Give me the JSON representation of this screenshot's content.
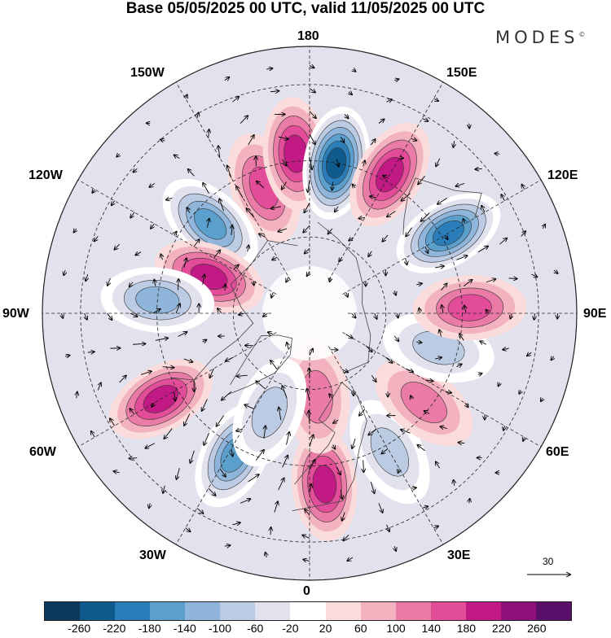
{
  "title": "Base 05/05/2025 00 UTC, valid 11/05/2025 00 UTC",
  "brand": "MODES",
  "brand_mark": "©",
  "longitude_labels": {
    "top": "180",
    "top_left": "150W",
    "top_right": "150E",
    "upper_left": "120W",
    "upper_right": "120E",
    "left": "90W",
    "right": "90E",
    "lower_left": "60W",
    "lower_right": "60E",
    "bottom_left": "30W",
    "bottom_right": "30E",
    "bottom": "0"
  },
  "colorbar": {
    "colors": [
      "#0d3a5c",
      "#0f5b8e",
      "#2a7db8",
      "#5b9fcc",
      "#8fb6da",
      "#bccbe4",
      "#e2e2ef",
      "#ffffff",
      "#fbdcdc",
      "#f3b2bf",
      "#ea7ba6",
      "#e24c98",
      "#c21a85",
      "#8e1078",
      "#5a0f6a"
    ],
    "tick_labels": [
      "-260",
      "-220",
      "-180",
      "-140",
      "-100",
      "-60",
      "-20",
      "20",
      "60",
      "100",
      "140",
      "180",
      "220",
      "260"
    ]
  },
  "reference_vector": "30",
  "anomaly_centers": [
    {
      "lat": 55,
      "lon": -160,
      "value": 150
    },
    {
      "lat": 48,
      "lon": -175,
      "value": 170
    },
    {
      "lat": 50,
      "lon": 170,
      "value": -240
    },
    {
      "lat": 48,
      "lon": 150,
      "value": 190
    },
    {
      "lat": 48,
      "lon": 120,
      "value": -200
    },
    {
      "lat": 55,
      "lon": -132,
      "value": -190
    },
    {
      "lat": 62,
      "lon": -110,
      "value": 170
    },
    {
      "lat": 50,
      "lon": -95,
      "value": -150
    },
    {
      "lat": 45,
      "lon": -60,
      "value": 190
    },
    {
      "lat": 48,
      "lon": -28,
      "value": -170
    },
    {
      "lat": 45,
      "lon": 5,
      "value": 190
    },
    {
      "lat": 48,
      "lon": 30,
      "value": -110
    },
    {
      "lat": 52,
      "lon": 52,
      "value": 80
    },
    {
      "lat": 55,
      "lon": 75,
      "value": -110
    },
    {
      "lat": 48,
      "lon": 92,
      "value": 130
    },
    {
      "lat": 68,
      "lon": 5,
      "value": 110
    },
    {
      "lat": 62,
      "lon": -22,
      "value": -90
    }
  ]
}
